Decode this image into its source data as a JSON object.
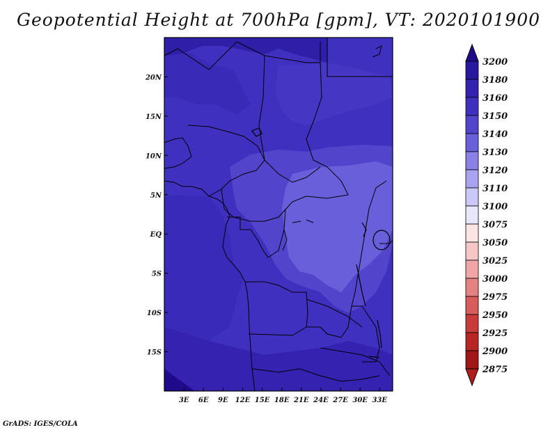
{
  "title": "Geopotential Height at 700hPa [gpm], VT: 2020101900",
  "credit": "GrADS: IGES/COLA",
  "map": {
    "lon_range": [
      0,
      35
    ],
    "lat_range": [
      -20,
      25
    ],
    "lon_ticks": [
      "3E",
      "6E",
      "9E",
      "12E",
      "15E",
      "18E",
      "21E",
      "24E",
      "27E",
      "30E",
      "33E"
    ],
    "lon_tick_values": [
      3,
      6,
      9,
      12,
      15,
      18,
      21,
      24,
      27,
      30,
      33
    ],
    "lat_ticks": [
      "20N",
      "15N",
      "10N",
      "5N",
      "EQ",
      "5S",
      "10S",
      "15S"
    ],
    "lat_tick_values": [
      20,
      15,
      10,
      5,
      0,
      -5,
      -10,
      -15
    ]
  },
  "colorbar": {
    "labels": [
      "3200",
      "3180",
      "3160",
      "3150",
      "3140",
      "3130",
      "3120",
      "3110",
      "3100",
      "3075",
      "3050",
      "3025",
      "3000",
      "2975",
      "2950",
      "2925",
      "2900",
      "2875"
    ],
    "colors": [
      "#1f0a8c",
      "#2a17a0",
      "#3522b0",
      "#3f30bf",
      "#5245cc",
      "#6a5fdb",
      "#8a80e6",
      "#aaa3ef",
      "#cbc7f6",
      "#e8e6fb",
      "#fbe4e4",
      "#f7c7c7",
      "#f0a6a6",
      "#e58282",
      "#d85c5c",
      "#c93b3b",
      "#b82525",
      "#a11616",
      "#b01d1d"
    ]
  }
}
